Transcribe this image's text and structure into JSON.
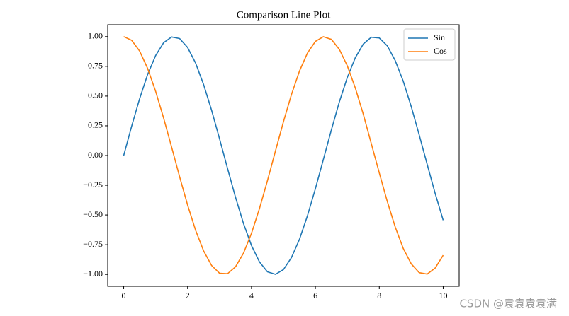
{
  "chart_data": {
    "type": "line",
    "title": "Comparison Line Plot",
    "x": [
      0,
      0.25,
      0.5,
      0.75,
      1,
      1.25,
      1.5,
      1.75,
      2,
      2.25,
      2.5,
      2.75,
      3,
      3.25,
      3.5,
      3.75,
      4,
      4.25,
      4.5,
      4.75,
      5,
      5.25,
      5.5,
      5.75,
      6,
      6.25,
      6.5,
      6.75,
      7,
      7.25,
      7.5,
      7.75,
      8,
      8.25,
      8.5,
      8.75,
      9,
      9.25,
      9.5,
      9.75,
      10
    ],
    "series": [
      {
        "name": "Sin",
        "color": "#1f77b4",
        "values": [
          0,
          0.247,
          0.479,
          0.682,
          0.841,
          0.949,
          0.997,
          0.984,
          0.909,
          0.778,
          0.598,
          0.382,
          0.141,
          -0.108,
          -0.351,
          -0.572,
          -0.757,
          -0.895,
          -0.978,
          -0.999,
          -0.959,
          -0.859,
          -0.706,
          -0.508,
          -0.279,
          -0.033,
          0.215,
          0.451,
          0.657,
          0.823,
          0.938,
          0.995,
          0.989,
          0.923,
          0.798,
          0.625,
          0.412,
          0.173,
          -0.075,
          -0.319,
          -0.544
        ]
      },
      {
        "name": "Cos",
        "color": "#ff7f0e",
        "values": [
          1,
          0.969,
          0.878,
          0.732,
          0.54,
          0.315,
          0.071,
          -0.178,
          -0.416,
          -0.628,
          -0.801,
          -0.924,
          -0.99,
          -0.994,
          -0.936,
          -0.821,
          -0.654,
          -0.446,
          -0.211,
          0.038,
          0.284,
          0.512,
          0.709,
          0.861,
          0.96,
          0.999,
          0.977,
          0.893,
          0.754,
          0.568,
          0.347,
          0.1,
          -0.146,
          -0.386,
          -0.602,
          -0.781,
          -0.911,
          -0.985,
          -0.997,
          -0.946,
          -0.839
        ]
      }
    ],
    "xlim": [
      -0.5,
      10.5
    ],
    "xticks": [
      0,
      2,
      4,
      6,
      8,
      10
    ],
    "ylim": [
      -1.1,
      1.1
    ],
    "yticks": [
      {
        "value": -1,
        "label": "−1.00"
      },
      {
        "value": -0.75,
        "label": "−0.75"
      },
      {
        "value": -0.5,
        "label": "−0.50"
      },
      {
        "value": -0.25,
        "label": "−0.25"
      },
      {
        "value": 0,
        "label": "0.00"
      },
      {
        "value": 0.25,
        "label": "0.25"
      },
      {
        "value": 0.5,
        "label": "0.50"
      },
      {
        "value": 0.75,
        "label": "0.75"
      },
      {
        "value": 1,
        "label": "1.00"
      }
    ],
    "legend": "upper right"
  },
  "watermark": "CSDN @袁袁袁袁满"
}
